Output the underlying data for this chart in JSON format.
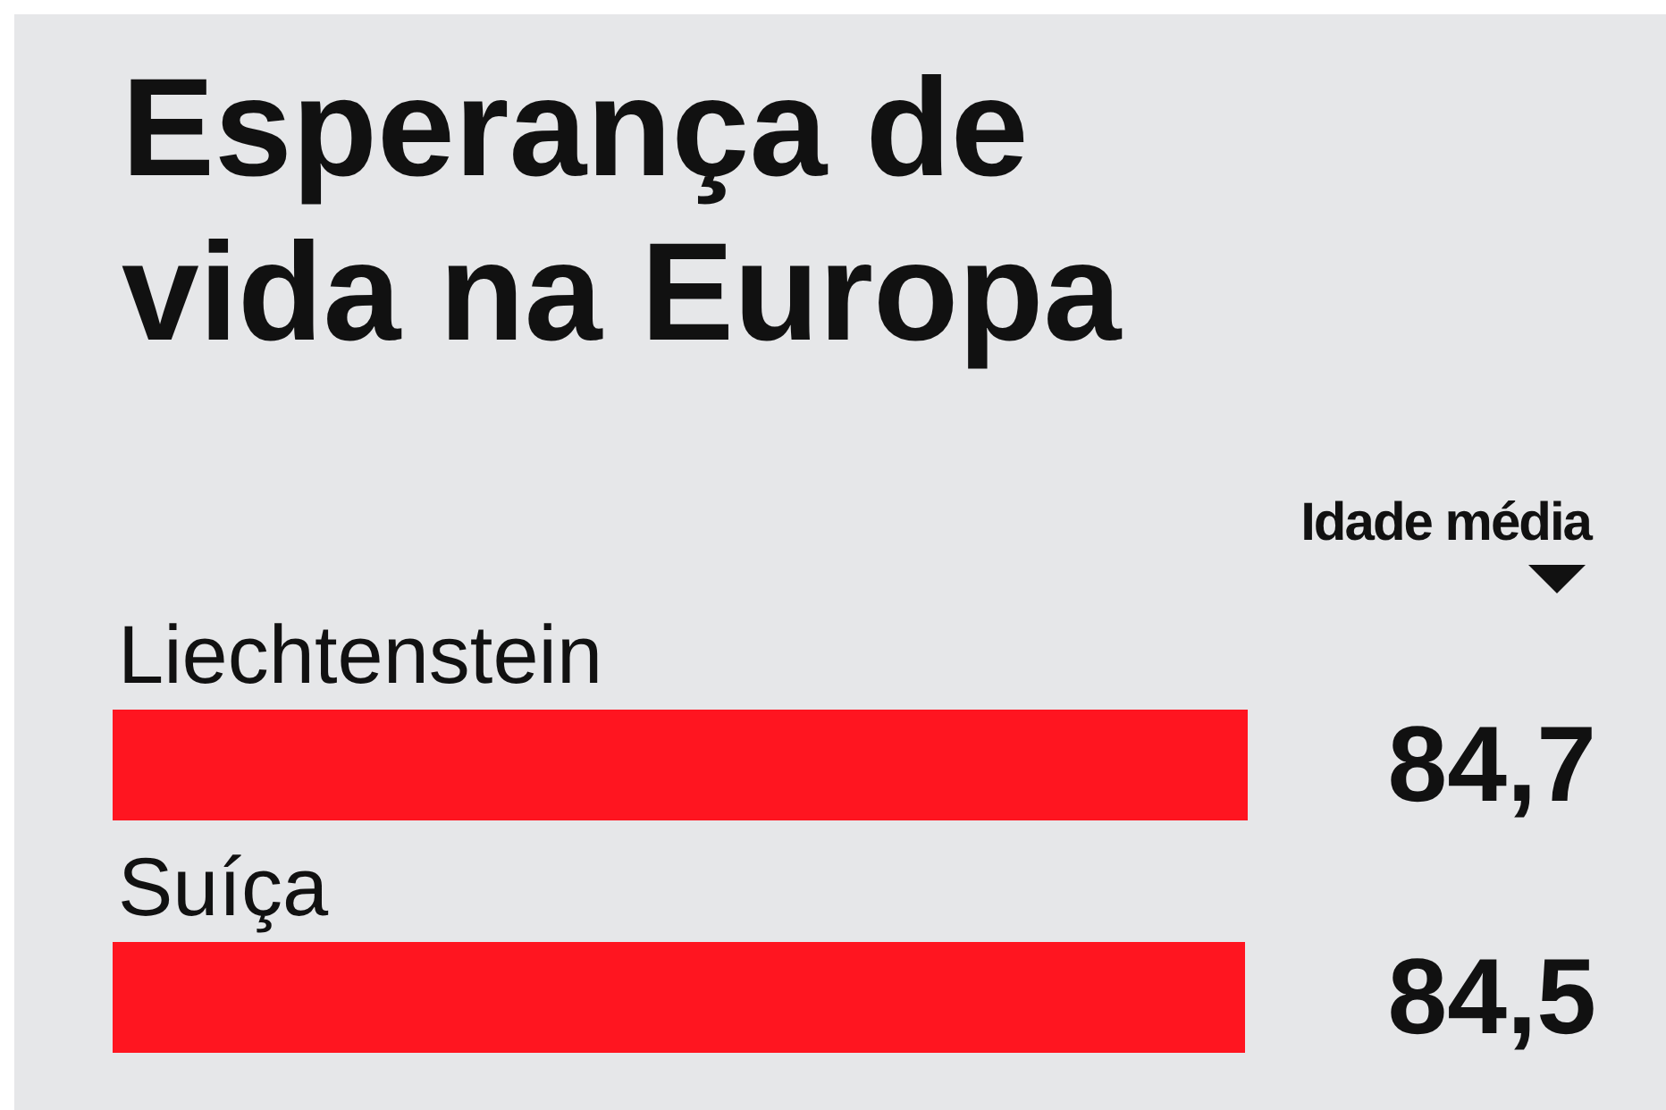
{
  "chart_data": {
    "type": "bar",
    "orientation": "horizontal",
    "title": "Esperança de vida na Europa",
    "annotations": [
      "Idade média"
    ],
    "categories": [
      "Liechtenstein",
      "Suíça"
    ],
    "values": [
      84.7,
      84.5
    ],
    "value_labels": [
      "84,7",
      "84,5"
    ],
    "color": "#ff1520"
  }
}
